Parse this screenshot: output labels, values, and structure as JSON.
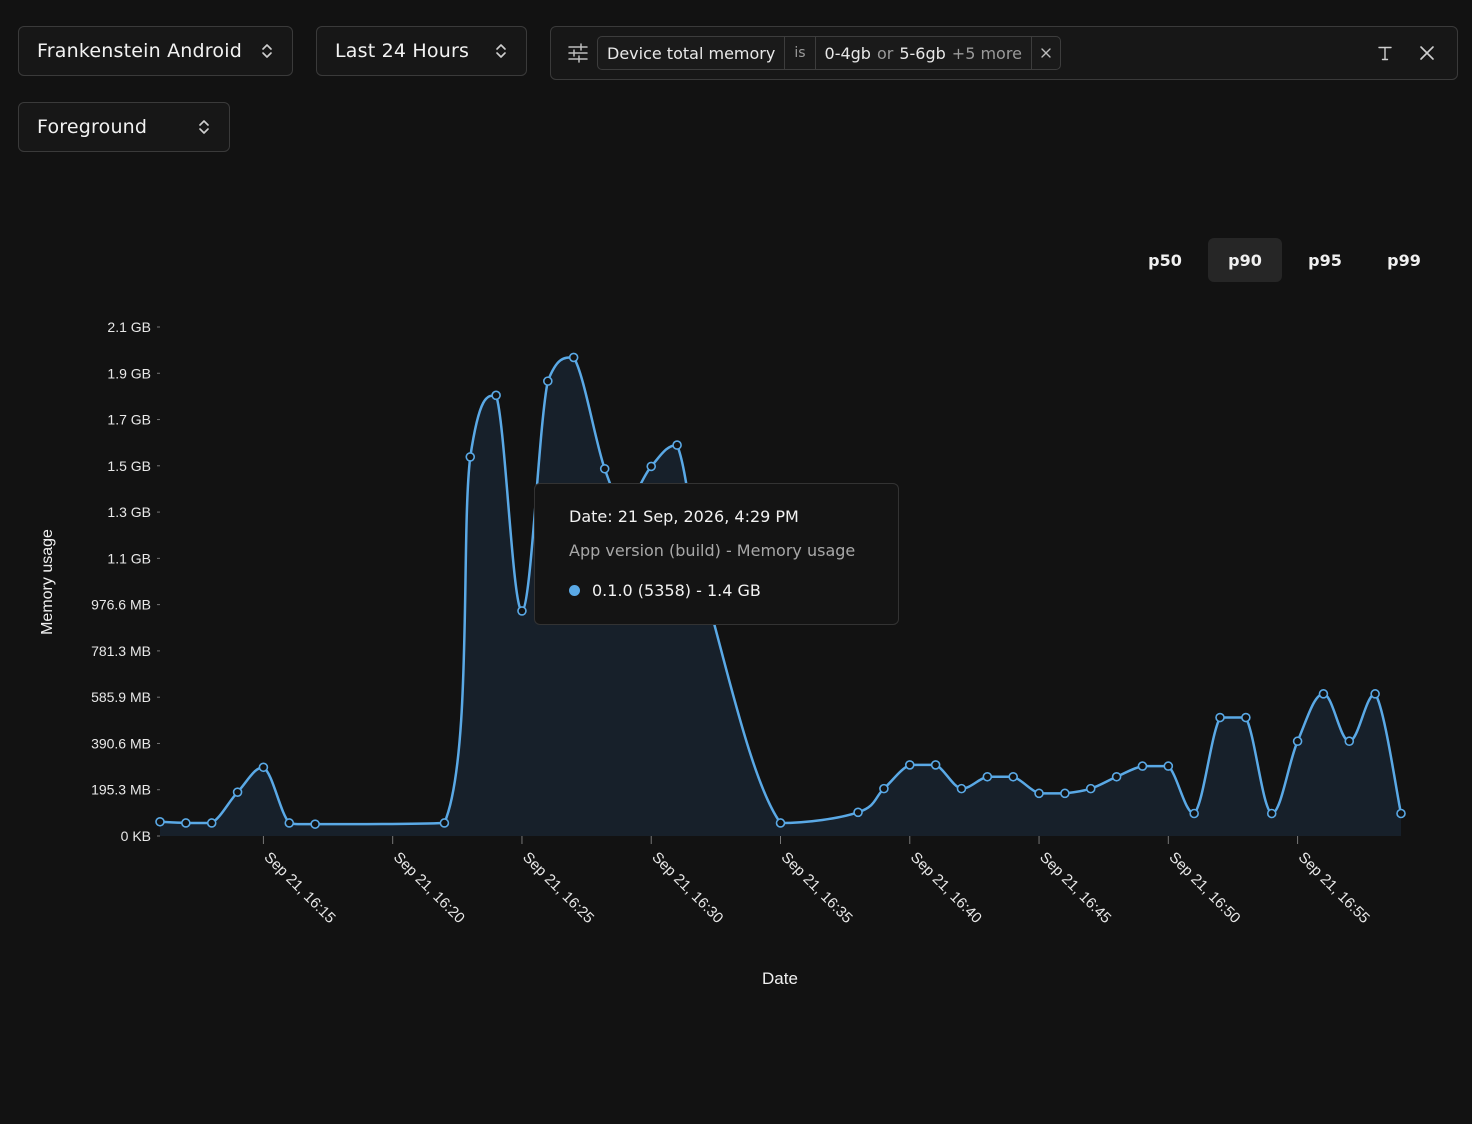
{
  "header": {
    "app_select": {
      "label": "Frankenstein Android",
      "icon": "chevron-up-down-icon"
    },
    "time_select": {
      "label": "Last 24 Hours",
      "icon": "chevron-up-down-icon"
    },
    "state_select": {
      "label": "Foreground",
      "icon": "chevron-up-down-icon"
    }
  },
  "filter": {
    "field": "Device total memory",
    "operator": "is",
    "value1": "0-4gb",
    "joiner": "or",
    "value2": "5-6gb",
    "more": "+5 more"
  },
  "percentiles": {
    "options": [
      "p50",
      "p90",
      "p95",
      "p99"
    ],
    "selected": "p90"
  },
  "colors": {
    "series": "#5aa9e6",
    "background": "#121212",
    "fill": "#17202a"
  },
  "tooltip": {
    "date": "Date: 21 Sep, 2026, 4:29 PM",
    "header": "App version (build) - Memory usage",
    "entry": "0.1.0 (5358) - 1.4 GB"
  },
  "chart_data": {
    "type": "area",
    "xlabel": "Date",
    "ylabel": "Memory usage",
    "y_ticks": [
      "0 KB",
      "195.3 MB",
      "390.6 MB",
      "585.9 MB",
      "781.3 MB",
      "976.6 MB",
      "1.1 GB",
      "1.3 GB",
      "1.5 GB",
      "1.7 GB",
      "1.9 GB",
      "2.1 GB"
    ],
    "y_unit": "MB",
    "y_tick_values": [
      0,
      195.3,
      390.6,
      585.9,
      781.3,
      976.6,
      1171.9,
      1367.2,
      1562.5,
      1757.8,
      1953.1,
      2148.4
    ],
    "ylim": [
      0,
      2148.4
    ],
    "x_start": "Sep 21, 16:11",
    "x_ticks": [
      "Sep 21, 16:15",
      "Sep 21, 16:20",
      "Sep 21, 16:25",
      "Sep 21, 16:30",
      "Sep 21, 16:35",
      "Sep 21, 16:40",
      "Sep 21, 16:45",
      "Sep 21, 16:50",
      "Sep 21, 16:55"
    ],
    "x_tick_minutes": [
      15,
      20,
      25,
      30,
      35,
      40,
      45,
      50,
      55
    ],
    "xlim_minutes": [
      11,
      59
    ],
    "series": [
      {
        "name": "0.1.0 (5358)",
        "points": [
          [
            11,
            60
          ],
          [
            12,
            55
          ],
          [
            13,
            55
          ],
          [
            14,
            185
          ],
          [
            15,
            290
          ],
          [
            16,
            55
          ],
          [
            17,
            50
          ],
          [
            22,
            55
          ],
          [
            23,
            1600
          ],
          [
            24,
            1860
          ],
          [
            25,
            950
          ],
          [
            26,
            1920
          ],
          [
            27,
            2020
          ],
          [
            28.2,
            1550
          ],
          [
            29,
            1400
          ],
          [
            30,
            1560
          ],
          [
            31,
            1650
          ],
          [
            32.3,
            950
          ],
          [
            35,
            55
          ],
          [
            38,
            100
          ],
          [
            39,
            200
          ],
          [
            40,
            300
          ],
          [
            41,
            300
          ],
          [
            42,
            200
          ],
          [
            43,
            250
          ],
          [
            44,
            250
          ],
          [
            45,
            180
          ],
          [
            46,
            180
          ],
          [
            47,
            200
          ],
          [
            48,
            250
          ],
          [
            49,
            295
          ],
          [
            50,
            295
          ],
          [
            51,
            95
          ],
          [
            52,
            500
          ],
          [
            53,
            500
          ],
          [
            54,
            95
          ],
          [
            55,
            400
          ],
          [
            56,
            600
          ],
          [
            57,
            400
          ],
          [
            58,
            600
          ],
          [
            59,
            95
          ]
        ],
        "markers_hidden_under_tooltip": [
          [
            28.2,
            1550
          ],
          [
            29,
            1400
          ],
          [
            32.3,
            950
          ]
        ]
      }
    ],
    "grid": false,
    "legend": "none"
  }
}
